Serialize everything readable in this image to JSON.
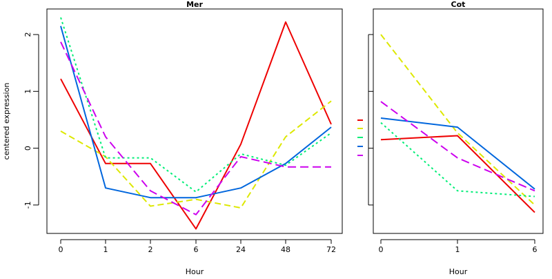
{
  "chart_data": [
    {
      "type": "line",
      "title": "Mer",
      "xlabel": "Hour",
      "ylabel": "centered expression",
      "categories": [
        "0",
        "1",
        "2",
        "6",
        "24",
        "48",
        "72"
      ],
      "ylim": [
        -1.5,
        2.45
      ],
      "yticks": [
        -1,
        0,
        1,
        2
      ],
      "grid": false,
      "series": [
        {
          "color": "#ee0000",
          "dash": "solid",
          "values": [
            1.22,
            -0.27,
            -0.27,
            -1.42,
            0.07,
            2.22,
            0.42
          ]
        },
        {
          "color": "#dde800",
          "dash": "dashed",
          "values": [
            0.3,
            -0.15,
            -1.02,
            -0.9,
            -1.05,
            0.2,
            0.83
          ]
        },
        {
          "color": "#00ee77",
          "dash": "dotted",
          "values": [
            2.3,
            -0.17,
            -0.17,
            -0.77,
            -0.1,
            -0.3,
            0.27
          ]
        },
        {
          "color": "#0066dd",
          "dash": "solid",
          "values": [
            2.15,
            -0.7,
            -0.87,
            -0.87,
            -0.7,
            -0.27,
            0.37
          ]
        },
        {
          "color": "#cc00ee",
          "dash": "longdash",
          "values": [
            1.87,
            0.2,
            -0.75,
            -1.17,
            -0.15,
            -0.33,
            -0.33
          ]
        }
      ]
    },
    {
      "type": "line",
      "title": "Cot",
      "xlabel": "Hour",
      "categories": [
        "0",
        "1",
        "6"
      ],
      "ylim": [
        -1.5,
        2.45
      ],
      "grid": false,
      "series": [
        {
          "color": "#ee0000",
          "dash": "solid",
          "values": [
            0.15,
            0.22,
            -1.13
          ]
        },
        {
          "color": "#dde800",
          "dash": "dashed",
          "values": [
            2.0,
            0.27,
            -1.0
          ]
        },
        {
          "color": "#00ee77",
          "dash": "dotted",
          "values": [
            0.45,
            -0.75,
            -0.85
          ]
        },
        {
          "color": "#0066dd",
          "dash": "solid",
          "values": [
            0.53,
            0.37,
            -0.72
          ]
        },
        {
          "color": "#cc00ee",
          "dash": "longdash",
          "values": [
            0.82,
            -0.17,
            -0.75
          ]
        }
      ]
    }
  ]
}
